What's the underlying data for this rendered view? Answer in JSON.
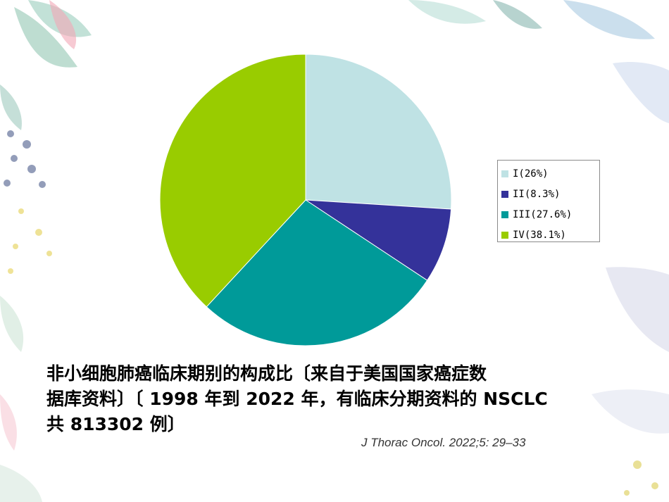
{
  "chart_data": {
    "type": "pie",
    "categories": [
      "I",
      "II",
      "III",
      "IV"
    ],
    "values": [
      26,
      8.3,
      27.6,
      38.1
    ],
    "legend": [
      "I(26%)",
      "II(8.3%)",
      "III(27.6%)",
      "IV(38.1%)"
    ],
    "colors": [
      "#bfe2e4",
      "#34329a",
      "#009a99",
      "#99cc00"
    ],
    "legend_position": "right"
  },
  "caption": {
    "line1": "非小细胞肺癌临床期别的构成比〔来自于美国国家癌症数",
    "line2": "据库资料〕〔 1998 年到 2022 年，有临床分期资料的 NSCLC",
    "line3": "共  813302 例〕"
  },
  "citation": "J Thorac Oncol. 2022;5: 29–33"
}
